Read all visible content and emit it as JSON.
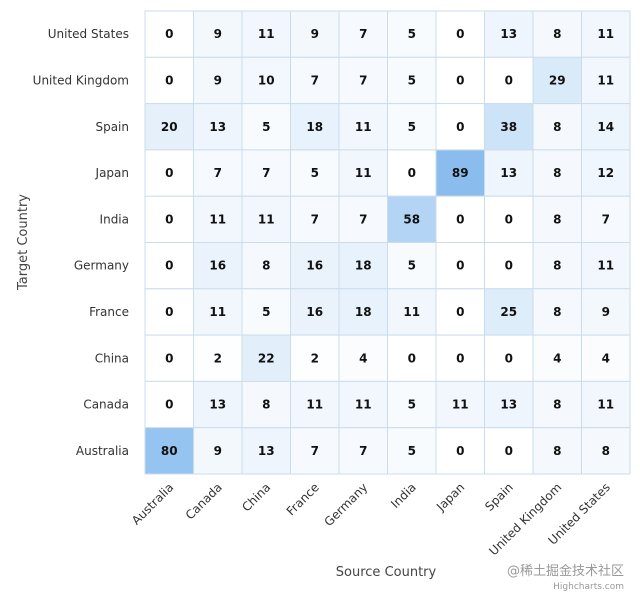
{
  "chart_data": {
    "type": "heatmap",
    "xlabel": "Source Country",
    "ylabel": "Target Country",
    "x_categories": [
      "Australia",
      "Canada",
      "China",
      "France",
      "Germany",
      "India",
      "Japan",
      "Spain",
      "United Kingdom",
      "United States"
    ],
    "y_categories": [
      "United States",
      "United Kingdom",
      "Spain",
      "Japan",
      "India",
      "Germany",
      "France",
      "China",
      "Canada",
      "Australia"
    ],
    "values": [
      [
        0,
        9,
        11,
        9,
        7,
        5,
        0,
        13,
        8,
        11
      ],
      [
        0,
        9,
        10,
        7,
        7,
        5,
        0,
        0,
        29,
        11
      ],
      [
        20,
        13,
        5,
        18,
        11,
        5,
        0,
        38,
        8,
        14
      ],
      [
        0,
        7,
        7,
        5,
        11,
        0,
        89,
        13,
        8,
        12
      ],
      [
        0,
        11,
        11,
        7,
        7,
        58,
        0,
        0,
        8,
        7
      ],
      [
        0,
        16,
        8,
        16,
        18,
        5,
        0,
        0,
        8,
        11
      ],
      [
        0,
        11,
        5,
        16,
        18,
        11,
        0,
        25,
        8,
        9
      ],
      [
        0,
        2,
        22,
        2,
        4,
        0,
        0,
        0,
        4,
        4
      ],
      [
        0,
        13,
        8,
        11,
        11,
        5,
        11,
        13,
        8,
        11
      ],
      [
        80,
        9,
        13,
        7,
        7,
        5,
        0,
        0,
        8,
        8
      ]
    ],
    "color_min": "#ffffff",
    "color_max": "#7cb5ec",
    "value_range": [
      0,
      100
    ],
    "grid": true,
    "legend": "none"
  },
  "watermark": "@稀土掘金技术社区",
  "credit": "Highcharts.com"
}
